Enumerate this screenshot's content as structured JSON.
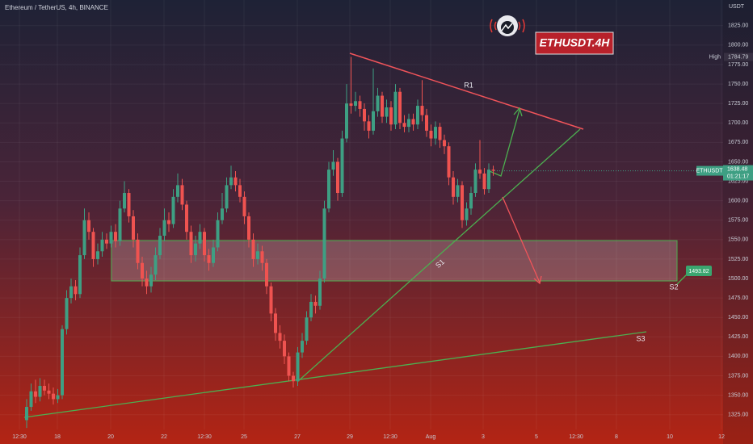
{
  "chart_data": {
    "type": "candlestick",
    "title": "Ethereum / TetherUS, 4h, BINANCE",
    "y_axis_label": "USDT",
    "up_color": "#3e9f83",
    "down_color": "#ef5350",
    "open": [
      1318,
      1335,
      1355,
      1348,
      1362,
      1356,
      1352,
      1345,
      1350,
      1435,
      1475,
      1490,
      1480,
      1530,
      1575,
      1560,
      1525,
      1535,
      1550,
      1545,
      1560,
      1548,
      1590,
      1610,
      1580,
      1550,
      1520,
      1500,
      1490,
      1505,
      1530,
      1555,
      1575,
      1570,
      1605,
      1620,
      1595,
      1560,
      1530,
      1545,
      1560,
      1530,
      1520,
      1540,
      1575,
      1590,
      1620,
      1630,
      1620,
      1605,
      1580,
      1550,
      1525,
      1535,
      1520,
      1490,
      1455,
      1430,
      1420,
      1400,
      1375,
      1368,
      1405,
      1420,
      1450,
      1470,
      1465,
      1500,
      1590,
      1640,
      1650,
      1610,
      1680,
      1725,
      1722,
      1728,
      1718,
      1702,
      1690,
      1715,
      1735,
      1708,
      1720,
      1698,
      1740,
      1700,
      1695,
      1705,
      1698,
      1722,
      1710,
      1690,
      1680,
      1695,
      1678,
      1670,
      1630,
      1605,
      1620,
      1575,
      1590,
      1610,
      1640,
      1635,
      1615,
      1640
    ],
    "high": [
      1345,
      1365,
      1370,
      1372,
      1370,
      1365,
      1360,
      1358,
      1440,
      1485,
      1500,
      1498,
      1540,
      1590,
      1585,
      1565,
      1545,
      1560,
      1558,
      1568,
      1570,
      1600,
      1625,
      1615,
      1588,
      1558,
      1528,
      1510,
      1515,
      1540,
      1565,
      1590,
      1585,
      1615,
      1635,
      1628,
      1600,
      1568,
      1555,
      1570,
      1565,
      1538,
      1550,
      1585,
      1610,
      1630,
      1645,
      1638,
      1628,
      1612,
      1585,
      1558,
      1545,
      1542,
      1525,
      1495,
      1462,
      1440,
      1428,
      1405,
      1380,
      1412,
      1430,
      1458,
      1480,
      1478,
      1510,
      1600,
      1650,
      1665,
      1655,
      1690,
      1750,
      1784.79,
      1740,
      1735,
      1725,
      1710,
      1770,
      1745,
      1740,
      1730,
      1728,
      1750,
      1745,
      1710,
      1712,
      1712,
      1730,
      1755,
      1718,
      1698,
      1702,
      1700,
      1685,
      1675,
      1638,
      1628,
      1625,
      1598,
      1618,
      1648,
      1678,
      1642,
      1648,
      1645
    ],
    "low": [
      1308,
      1330,
      1340,
      1342,
      1350,
      1345,
      1338,
      1340,
      1345,
      1428,
      1468,
      1472,
      1475,
      1525,
      1550,
      1515,
      1518,
      1528,
      1538,
      1540,
      1540,
      1542,
      1585,
      1572,
      1540,
      1512,
      1490,
      1480,
      1482,
      1498,
      1525,
      1548,
      1560,
      1565,
      1598,
      1588,
      1550,
      1520,
      1522,
      1538,
      1522,
      1510,
      1515,
      1535,
      1570,
      1585,
      1615,
      1612,
      1598,
      1570,
      1540,
      1515,
      1518,
      1510,
      1480,
      1445,
      1420,
      1410,
      1390,
      1368,
      1360,
      1362,
      1398,
      1415,
      1445,
      1455,
      1460,
      1495,
      1585,
      1632,
      1600,
      1605,
      1675,
      1712,
      1715,
      1708,
      1690,
      1680,
      1685,
      1708,
      1700,
      1700,
      1690,
      1692,
      1692,
      1688,
      1688,
      1690,
      1692,
      1702,
      1682,
      1670,
      1672,
      1668,
      1660,
      1620,
      1595,
      1598,
      1565,
      1568,
      1582,
      1605,
      1628,
      1608,
      1610,
      1632
    ],
    "close": [
      1335,
      1355,
      1348,
      1362,
      1356,
      1352,
      1345,
      1350,
      1435,
      1475,
      1490,
      1480,
      1530,
      1575,
      1560,
      1525,
      1535,
      1550,
      1545,
      1560,
      1548,
      1590,
      1610,
      1580,
      1550,
      1520,
      1500,
      1490,
      1505,
      1530,
      1555,
      1575,
      1570,
      1605,
      1620,
      1595,
      1560,
      1530,
      1545,
      1560,
      1530,
      1520,
      1540,
      1575,
      1590,
      1620,
      1630,
      1620,
      1605,
      1580,
      1550,
      1525,
      1535,
      1520,
      1490,
      1455,
      1430,
      1420,
      1400,
      1375,
      1368,
      1405,
      1420,
      1450,
      1470,
      1465,
      1500,
      1590,
      1640,
      1650,
      1610,
      1680,
      1725,
      1722,
      1728,
      1718,
      1702,
      1690,
      1715,
      1735,
      1708,
      1720,
      1698,
      1740,
      1700,
      1695,
      1705,
      1698,
      1722,
      1710,
      1690,
      1680,
      1695,
      1678,
      1670,
      1630,
      1605,
      1620,
      1575,
      1590,
      1610,
      1640,
      1635,
      1615,
      1640,
      1638.48
    ],
    "ylim": [
      1306,
      1858
    ],
    "yticks": [
      {
        "value": 1325,
        "label": "1325.00"
      },
      {
        "value": 1350,
        "label": "1350.00"
      },
      {
        "value": 1375,
        "label": "1375.00"
      },
      {
        "value": 1400,
        "label": "1400.00"
      },
      {
        "value": 1425,
        "label": "1425.00"
      },
      {
        "value": 1450,
        "label": "1450.00"
      },
      {
        "value": 1475,
        "label": "1475.00"
      },
      {
        "value": 1500,
        "label": "1500.00"
      },
      {
        "value": 1525,
        "label": "1525.00"
      },
      {
        "value": 1550,
        "label": "1550.00"
      },
      {
        "value": 1575,
        "label": "1575.00"
      },
      {
        "value": 1600,
        "label": "1600.00"
      },
      {
        "value": 1625,
        "label": "1625.00"
      },
      {
        "value": 1650,
        "label": "1650.00"
      },
      {
        "value": 1675,
        "label": "1675.00"
      },
      {
        "value": 1700,
        "label": "1700.00"
      },
      {
        "value": 1725,
        "label": "1725.00"
      },
      {
        "value": 1750,
        "label": "1750.00"
      },
      {
        "value": 1775,
        "label": "1775.00"
      },
      {
        "value": 1800,
        "label": "1800.00"
      },
      {
        "value": 1825,
        "label": "1825.00"
      }
    ],
    "xtick_labels": [
      "12:30",
      "18",
      "20",
      "22",
      "12:30",
      "25",
      "27",
      "29",
      "12:30",
      "Aug",
      "3",
      "5",
      "12:30",
      "8",
      "10",
      "12"
    ],
    "high_label": "High",
    "symbol": "ETHUSDT",
    "countdown": "01:21:17",
    "badge": "ETHUSDT.4H",
    "annotations": [
      "R1",
      "S1",
      "S2",
      "S3"
    ],
    "target_label": "1493.82",
    "grid": true
  }
}
